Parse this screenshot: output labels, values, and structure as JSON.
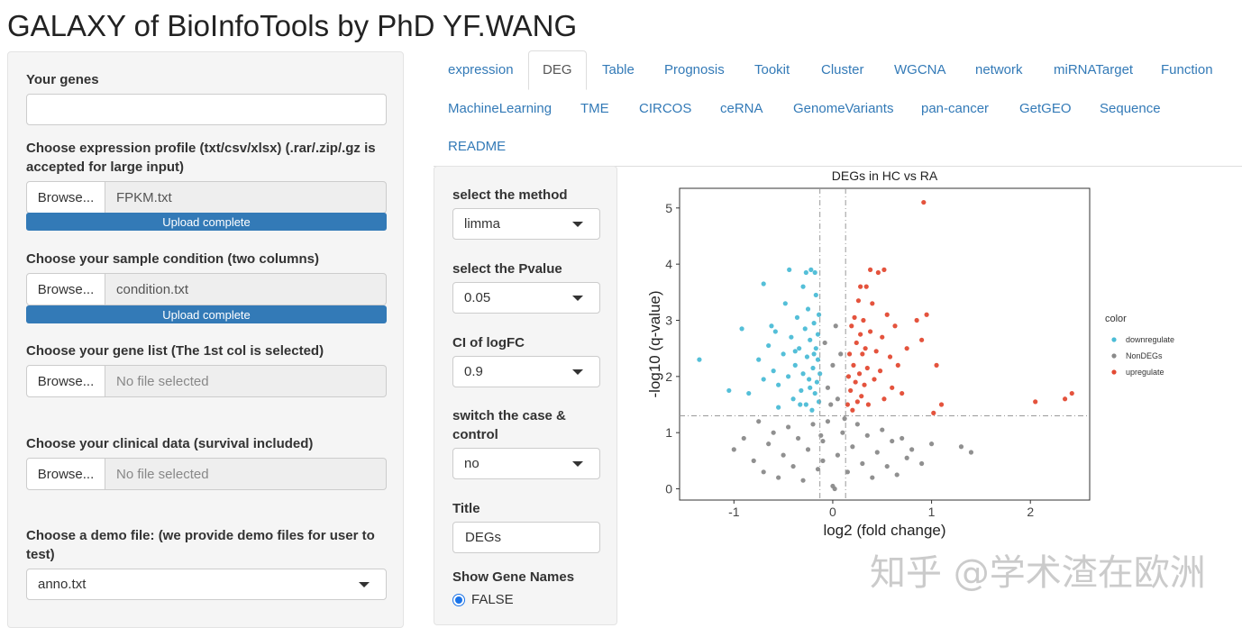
{
  "page_title": "GALAXY of BioInfoTools by PhD YF.WANG",
  "sidebar": {
    "genes_label": "Your genes",
    "genes_value": "",
    "expr_label": "Choose expression profile (txt/csv/xlsx) (.rar/.zip/.gz is accepted for large input)",
    "expr_file": "FPKM.txt",
    "cond_label": "Choose your sample condition (two columns)",
    "cond_file": "condition.txt",
    "genelist_label": "Choose your gene list (The 1st col is selected)",
    "genelist_file": "No file selected",
    "clinical_label": "Choose your clinical data (survival included)",
    "clinical_file": "No file selected",
    "demo_label": "Choose a demo file: (we provide demo files for user to test)",
    "demo_value": "anno.txt",
    "browse_label": "Browse...",
    "upload_status": "Upload complete"
  },
  "tabs": [
    "expression",
    "DEG",
    "Table",
    "Prognosis",
    "Tookit",
    "Cluster",
    "WGCNA",
    "network",
    "miRNATarget",
    "Function",
    "MachineLearning",
    "TME",
    "CIRCOS",
    "ceRNA",
    "GenomeVariants",
    "pan-cancer",
    "GetGEO",
    "Sequence",
    "README"
  ],
  "active_tab": "DEG",
  "controls": {
    "method_label": "select the method",
    "method_value": "limma",
    "pvalue_label": "select the Pvalue",
    "pvalue_value": "0.05",
    "logfc_label": "CI of logFC",
    "logfc_value": "0.9",
    "switch_label": "switch the case & control",
    "switch_value": "no",
    "title_label": "Title",
    "title_value": "DEGs",
    "genenames_label": "Show Gene Names",
    "genenames_option": "FALSE"
  },
  "chart_data": {
    "type": "scatter",
    "title": "DEGs in HC vs RA",
    "xlabel": "log2 (fold change)",
    "ylabel": "-log10 (q-value)",
    "xlim": [
      -1.55,
      2.6
    ],
    "ylim": [
      -0.2,
      5.35
    ],
    "xticks": [
      -1,
      0,
      1,
      2
    ],
    "yticks": [
      0,
      1,
      2,
      3,
      4,
      5
    ],
    "vlines": [
      -0.13,
      0.13
    ],
    "hline": 1.3,
    "legend_title": "color",
    "legend_position": "right",
    "series": [
      {
        "name": "downregulate",
        "color": "#4bbcd6",
        "points": [
          [
            -1.35,
            2.3
          ],
          [
            -1.05,
            1.75
          ],
          [
            -0.85,
            1.7
          ],
          [
            -0.92,
            2.85
          ],
          [
            -0.75,
            2.3
          ],
          [
            -0.7,
            1.95
          ],
          [
            -0.65,
            2.55
          ],
          [
            -0.6,
            2.1
          ],
          [
            -0.58,
            2.8
          ],
          [
            -0.55,
            1.85
          ],
          [
            -0.5,
            2.4
          ],
          [
            -0.48,
            3.3
          ],
          [
            -0.45,
            2.0
          ],
          [
            -0.42,
            2.7
          ],
          [
            -0.4,
            1.6
          ],
          [
            -0.38,
            2.2
          ],
          [
            -0.36,
            3.05
          ],
          [
            -0.34,
            2.5
          ],
          [
            -0.32,
            1.75
          ],
          [
            -0.3,
            3.6
          ],
          [
            -0.3,
            2.05
          ],
          [
            -0.28,
            2.85
          ],
          [
            -0.27,
            1.5
          ],
          [
            -0.26,
            2.35
          ],
          [
            -0.25,
            3.2
          ],
          [
            -0.24,
            1.95
          ],
          [
            -0.23,
            2.65
          ],
          [
            -0.22,
            3.9
          ],
          [
            -0.21,
            1.4
          ],
          [
            -0.2,
            2.15
          ],
          [
            -0.19,
            2.95
          ],
          [
            -0.18,
            1.7
          ],
          [
            -0.17,
            2.5
          ],
          [
            -0.17,
            3.45
          ],
          [
            -0.16,
            1.9
          ],
          [
            -0.15,
            2.3
          ],
          [
            -0.15,
            2.75
          ],
          [
            -0.14,
            1.55
          ],
          [
            -0.14,
            3.1
          ],
          [
            -0.13,
            2.05
          ],
          [
            -0.55,
            1.45
          ],
          [
            -0.62,
            2.9
          ],
          [
            -0.33,
            1.5
          ],
          [
            -0.27,
            3.85
          ],
          [
            -0.18,
            3.85
          ],
          [
            -0.44,
            3.9
          ],
          [
            -0.7,
            3.65
          ],
          [
            -0.38,
            2.45
          ],
          [
            -0.23,
            1.8
          ],
          [
            -0.19,
            2.4
          ]
        ]
      },
      {
        "name": "NonDEGs",
        "color": "#8a8a8a",
        "points": [
          [
            -0.9,
            0.9
          ],
          [
            -0.8,
            0.5
          ],
          [
            -0.75,
            1.2
          ],
          [
            -0.7,
            0.3
          ],
          [
            -0.65,
            0.8
          ],
          [
            -0.6,
            1.0
          ],
          [
            -0.55,
            0.2
          ],
          [
            -0.5,
            0.6
          ],
          [
            -0.45,
            1.1
          ],
          [
            -0.4,
            0.4
          ],
          [
            -0.35,
            0.9
          ],
          [
            -0.3,
            0.15
          ],
          [
            -0.25,
            0.7
          ],
          [
            -0.2,
            1.15
          ],
          [
            -0.15,
            0.35
          ],
          [
            -0.1,
            0.85
          ],
          [
            -0.05,
            1.2
          ],
          [
            0.0,
            0.05
          ],
          [
            0.05,
            0.6
          ],
          [
            0.1,
            1.0
          ],
          [
            0.15,
            0.3
          ],
          [
            0.2,
            0.75
          ],
          [
            0.25,
            1.15
          ],
          [
            0.3,
            0.45
          ],
          [
            0.35,
            0.95
          ],
          [
            0.4,
            0.2
          ],
          [
            0.45,
            0.65
          ],
          [
            0.5,
            1.05
          ],
          [
            0.55,
            0.4
          ],
          [
            0.6,
            0.85
          ],
          [
            0.65,
            0.25
          ],
          [
            0.7,
            0.9
          ],
          [
            0.75,
            0.55
          ],
          [
            0.8,
            0.7
          ],
          [
            1.0,
            0.8
          ],
          [
            1.3,
            0.75
          ],
          [
            1.4,
            0.65
          ],
          [
            -0.05,
            1.8
          ],
          [
            0.0,
            2.2
          ],
          [
            0.05,
            1.6
          ],
          [
            -0.08,
            2.6
          ],
          [
            0.08,
            2.4
          ],
          [
            -0.02,
            1.5
          ],
          [
            0.03,
            2.9
          ],
          [
            -0.1,
            0.5
          ],
          [
            0.12,
            1.25
          ],
          [
            -0.12,
            0.95
          ],
          [
            -1.0,
            0.7
          ],
          [
            0.9,
            0.45
          ],
          [
            0.02,
            0.0
          ]
        ]
      },
      {
        "name": "upregulate",
        "color": "#e34a33",
        "points": [
          [
            0.92,
            5.1
          ],
          [
            0.15,
            1.5
          ],
          [
            0.16,
            2.0
          ],
          [
            0.17,
            2.4
          ],
          [
            0.18,
            1.75
          ],
          [
            0.19,
            2.9
          ],
          [
            0.2,
            1.4
          ],
          [
            0.21,
            2.2
          ],
          [
            0.22,
            3.05
          ],
          [
            0.23,
            1.9
          ],
          [
            0.24,
            2.6
          ],
          [
            0.25,
            1.55
          ],
          [
            0.26,
            3.35
          ],
          [
            0.27,
            2.05
          ],
          [
            0.28,
            2.75
          ],
          [
            0.29,
            1.65
          ],
          [
            0.3,
            2.4
          ],
          [
            0.31,
            3.0
          ],
          [
            0.32,
            1.85
          ],
          [
            0.33,
            2.5
          ],
          [
            0.34,
            3.6
          ],
          [
            0.35,
            2.15
          ],
          [
            0.36,
            1.5
          ],
          [
            0.38,
            2.8
          ],
          [
            0.4,
            3.3
          ],
          [
            0.42,
            1.95
          ],
          [
            0.44,
            2.45
          ],
          [
            0.46,
            3.85
          ],
          [
            0.48,
            2.1
          ],
          [
            0.5,
            2.7
          ],
          [
            0.52,
            1.6
          ],
          [
            0.55,
            3.1
          ],
          [
            0.58,
            2.35
          ],
          [
            0.6,
            1.8
          ],
          [
            0.63,
            2.9
          ],
          [
            0.66,
            2.2
          ],
          [
            0.7,
            1.7
          ],
          [
            0.75,
            2.5
          ],
          [
            0.85,
            3.0
          ],
          [
            0.95,
            3.1
          ],
          [
            1.1,
            1.5
          ],
          [
            1.02,
            1.35
          ],
          [
            2.05,
            1.55
          ],
          [
            2.35,
            1.6
          ],
          [
            2.42,
            1.7
          ],
          [
            0.38,
            3.9
          ],
          [
            0.52,
            3.9
          ],
          [
            0.28,
            3.6
          ],
          [
            0.9,
            2.65
          ],
          [
            1.05,
            2.2
          ]
        ]
      }
    ]
  },
  "watermark": "知乎 @学术渣在欧洲"
}
